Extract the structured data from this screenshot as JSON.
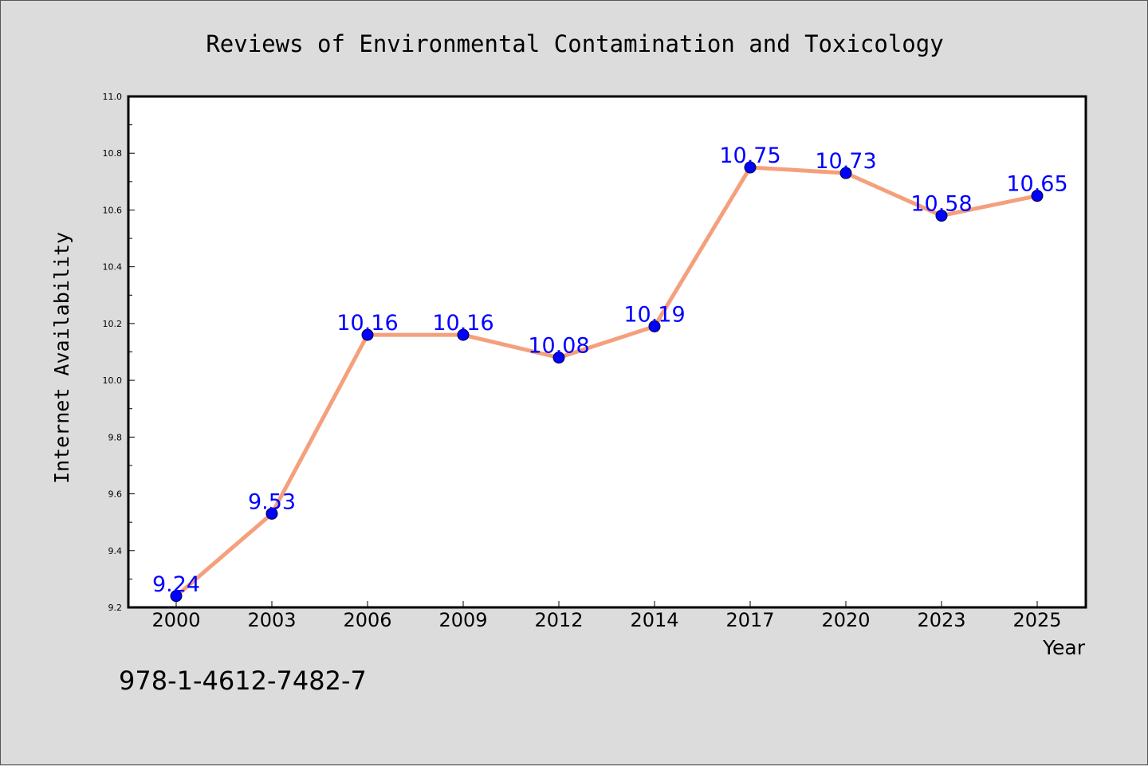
{
  "chart_data": {
    "type": "line",
    "title": "Reviews of Environmental Contamination and Toxicology",
    "xlabel": "Year",
    "ylabel": "Internet Availability",
    "categories": [
      "2000",
      "2003",
      "2006",
      "2009",
      "2012",
      "2014",
      "2017",
      "2020",
      "2023",
      "2025"
    ],
    "series": [
      {
        "values": [
          9.24,
          9.53,
          10.16,
          10.16,
          10.08,
          10.19,
          10.75,
          10.73,
          10.58,
          10.65
        ],
        "line_color": "#f4a07c",
        "marker_color": "#0000ff",
        "label_color": "#0000ff"
      }
    ],
    "ylim": [
      9.2,
      11.0
    ],
    "yticks": [
      "9.2",
      "9.4",
      "9.6",
      "9.8",
      "10.0",
      "10.2",
      "10.4",
      "10.6",
      "10.8",
      "11.0"
    ],
    "data_labels": [
      "9.24",
      "9.53",
      "10.16",
      "10.16",
      "10.08",
      "10.19",
      "10.75",
      "10.73",
      "10.58",
      "10.65"
    ],
    "grid": false,
    "legend": "none",
    "annotation": "978-1-4612-7482-7"
  },
  "colors": {
    "background": "#dcdcdc",
    "plot_area": "#ffffff"
  }
}
